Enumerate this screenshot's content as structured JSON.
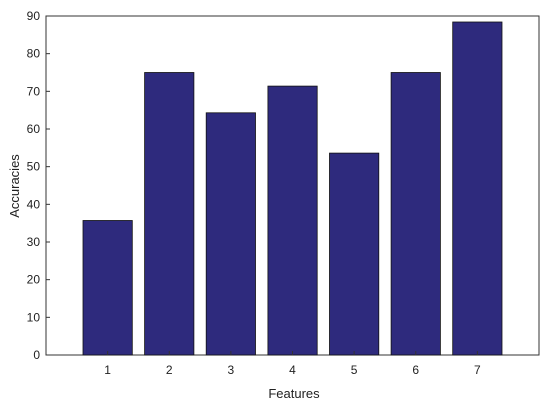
{
  "chart_data": {
    "type": "bar",
    "categories": [
      "1",
      "2",
      "3",
      "4",
      "5",
      "6",
      "7"
    ],
    "values": [
      35.7,
      75.0,
      64.3,
      71.4,
      53.6,
      75.0,
      88.4
    ],
    "xlabel": "Features",
    "ylabel": "Accuracies",
    "ylim": [
      0,
      90
    ],
    "yticks": [
      "0",
      "10",
      "20",
      "30",
      "40",
      "50",
      "60",
      "70",
      "80",
      "90"
    ],
    "grid": false,
    "bar_color": "#2e2a7d",
    "bar_edge_color": "#111111"
  }
}
